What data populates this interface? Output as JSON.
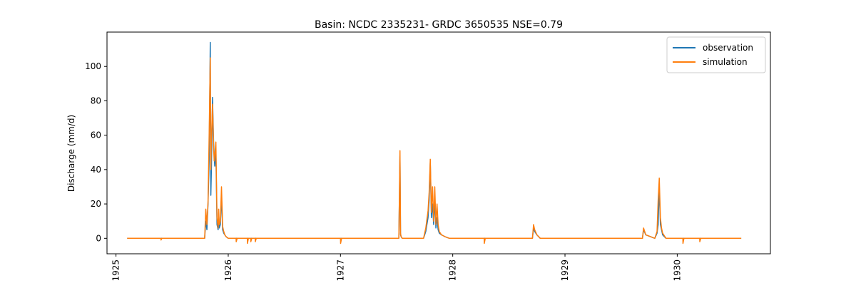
{
  "chart_data": {
    "type": "line",
    "title": "Basin: NCDC 2335231- GRDC 3650535 NSE=0.79",
    "xlabel": "",
    "ylabel": "Discharge (mm/d)",
    "xlim": [
      1924.92,
      1930.83
    ],
    "ylim": [
      -9,
      120
    ],
    "grid": false,
    "legend_position": "top-right",
    "x_ticks": [
      1925,
      1926,
      1927,
      1928,
      1929,
      1930
    ],
    "x_tick_labels": [
      "1925",
      "1926",
      "1927",
      "1928",
      "1929",
      "1930"
    ],
    "y_ticks": [
      0,
      20,
      40,
      60,
      80,
      100
    ],
    "y_tick_labels": [
      "0",
      "20",
      "40",
      "60",
      "80",
      "100"
    ],
    "series": [
      {
        "name": "observation",
        "color": "#1f77b4",
        "x": [
          1925.1,
          1925.79,
          1925.8,
          1925.81,
          1925.82,
          1925.83,
          1925.84,
          1925.845,
          1925.85,
          1925.86,
          1925.87,
          1925.875,
          1925.88,
          1925.89,
          1925.9,
          1925.91,
          1925.915,
          1925.92,
          1925.93,
          1925.94,
          1925.95,
          1925.96,
          1925.97,
          1925.98,
          1926.0,
          1926.05,
          1927.52,
          1927.53,
          1927.535,
          1927.54,
          1927.55,
          1927.74,
          1927.76,
          1927.78,
          1927.79,
          1927.8,
          1927.81,
          1927.82,
          1927.83,
          1927.84,
          1927.85,
          1927.86,
          1927.87,
          1927.88,
          1927.9,
          1927.93,
          1927.97,
          1928.71,
          1928.72,
          1928.73,
          1928.75,
          1928.78,
          1929.69,
          1929.7,
          1929.72,
          1929.8,
          1929.82,
          1929.83,
          1929.84,
          1929.85,
          1929.86,
          1929.87,
          1929.9,
          1930.57
        ],
        "y": [
          0,
          0,
          10,
          5,
          20,
          45,
          114,
          25,
          40,
          82,
          55,
          48,
          42,
          50,
          8,
          5,
          15,
          6,
          8,
          25,
          5,
          3,
          2,
          1,
          0,
          0,
          0,
          48,
          2,
          1,
          0,
          0,
          4,
          12,
          22,
          44,
          12,
          20,
          8,
          22,
          6,
          12,
          5,
          3,
          2,
          1,
          0,
          0,
          6,
          4,
          2,
          0,
          0,
          5,
          2,
          0,
          3,
          8,
          30,
          8,
          5,
          2,
          0,
          0
        ]
      },
      {
        "name": "simulation",
        "color": "#ff7f0e",
        "x": [
          1925.1,
          1925.4,
          1925.401,
          1925.41,
          1925.79,
          1925.8,
          1925.81,
          1925.82,
          1925.83,
          1925.84,
          1925.845,
          1925.85,
          1925.86,
          1925.87,
          1925.875,
          1925.88,
          1925.89,
          1925.9,
          1925.91,
          1925.915,
          1925.92,
          1925.93,
          1925.94,
          1925.95,
          1925.96,
          1925.97,
          1925.98,
          1926.0,
          1926.07,
          1926.071,
          1926.08,
          1926.17,
          1926.171,
          1926.18,
          1926.2,
          1926.201,
          1926.21,
          1926.24,
          1926.241,
          1926.25,
          1927.0,
          1927.001,
          1927.01,
          1927.52,
          1927.53,
          1927.535,
          1927.54,
          1927.55,
          1927.74,
          1927.76,
          1927.78,
          1927.79,
          1927.8,
          1927.81,
          1927.82,
          1927.83,
          1927.84,
          1927.85,
          1927.86,
          1927.87,
          1927.88,
          1927.9,
          1927.93,
          1927.97,
          1928.28,
          1928.281,
          1928.29,
          1928.71,
          1928.72,
          1928.73,
          1928.75,
          1928.78,
          1929.69,
          1929.7,
          1929.72,
          1929.8,
          1929.82,
          1929.83,
          1929.84,
          1929.85,
          1929.86,
          1929.87,
          1929.9,
          1930.05,
          1930.051,
          1930.06,
          1930.2,
          1930.201,
          1930.21,
          1930.57
        ],
        "y": [
          0,
          0,
          -1,
          0,
          0,
          17,
          8,
          21,
          60,
          105,
          40,
          58,
          78,
          52,
          45,
          48,
          56,
          12,
          6,
          17,
          8,
          10,
          30,
          7,
          4,
          2,
          1,
          0,
          0,
          -2,
          0,
          0,
          -3,
          0,
          0,
          -2,
          0,
          0,
          -2,
          0,
          0,
          -3,
          0,
          0,
          51,
          3,
          1,
          0,
          0,
          6,
          16,
          27,
          46,
          15,
          30,
          10,
          30,
          8,
          20,
          8,
          4,
          2,
          1,
          0,
          0,
          -3,
          0,
          0,
          8,
          5,
          2,
          0,
          0,
          6,
          2,
          0,
          4,
          22,
          35,
          12,
          6,
          3,
          0,
          0,
          -3,
          0,
          0,
          -2,
          0,
          0
        ]
      }
    ]
  }
}
